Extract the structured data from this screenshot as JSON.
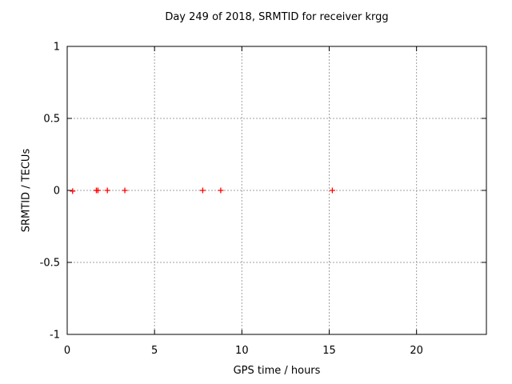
{
  "chart_data": {
    "type": "scatter",
    "title": "Day 249 of 2018, SRMTID for receiver krgg",
    "xlabel": "GPS time / hours",
    "ylabel": "SRMTID / TECUs",
    "xlim": [
      0,
      24
    ],
    "ylim": [
      -1,
      1
    ],
    "xticks": [
      0,
      5,
      10,
      15,
      20
    ],
    "xtick_labels": [
      "0",
      "5",
      "10",
      "15",
      "20"
    ],
    "yticks": [
      1,
      0.5,
      0,
      -0.5,
      -1
    ],
    "ytick_labels": [
      "1",
      "0.5",
      "0",
      "-0.5",
      "-1"
    ],
    "grid": true,
    "legend_position": "none",
    "marker": "plus",
    "colors": {
      "marker": "#ff0000",
      "grid": "#a0a0a0",
      "border": "#000000",
      "background": "#ffffff"
    },
    "series": [
      {
        "points": [
          {
            "x": 0.31,
            "y": -0.005
          },
          {
            "x": 1.67,
            "y": 0.0
          },
          {
            "x": 1.76,
            "y": 0.0
          },
          {
            "x": 2.3,
            "y": 0.0
          },
          {
            "x": 3.3,
            "y": 0.0
          },
          {
            "x": 7.76,
            "y": 0.0
          },
          {
            "x": 8.79,
            "y": 0.0
          },
          {
            "x": 15.18,
            "y": 0.0
          }
        ]
      }
    ]
  }
}
